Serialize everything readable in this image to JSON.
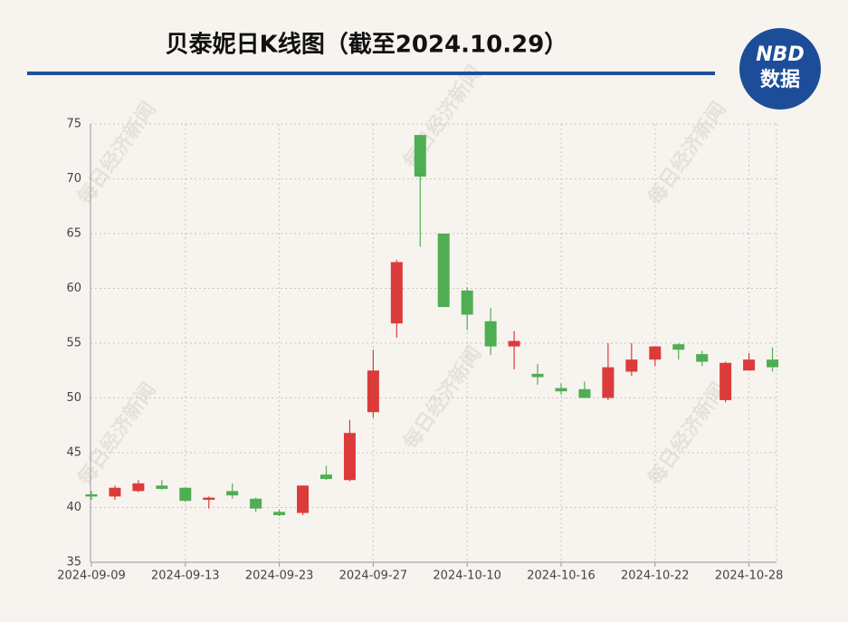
{
  "chart_data": {
    "type": "candlestick",
    "title": "贝泰妮日K线图（截至2024.10.29）",
    "logo": {
      "top": "NBD",
      "bottom": "数据"
    },
    "watermark": "每日经济新闻",
    "categories": [
      "2024-09-09",
      null,
      null,
      null,
      "2024-09-13",
      null,
      null,
      null,
      "2024-09-23",
      null,
      null,
      null,
      "2024-09-27",
      null,
      null,
      null,
      "2024-10-10",
      null,
      null,
      null,
      "2024-10-16",
      null,
      null,
      null,
      "2024-10-22",
      null,
      null,
      null,
      "2024-10-28",
      null
    ],
    "open": [
      41.2,
      41.0,
      41.5,
      42.0,
      41.8,
      40.7,
      41.5,
      40.8,
      39.6,
      39.5,
      43.0,
      42.5,
      48.7,
      56.8,
      74.0,
      65.0,
      59.8,
      57.0,
      54.7,
      52.2,
      50.9,
      50.8,
      50.0,
      52.4,
      53.5,
      54.9,
      54.0,
      49.8,
      52.5,
      53.5
    ],
    "high": [
      41.5,
      42.0,
      42.5,
      42.5,
      41.8,
      41.0,
      42.2,
      40.9,
      39.8,
      42.0,
      43.8,
      48.0,
      54.4,
      62.6,
      74.0,
      65.0,
      60.1,
      58.2,
      56.1,
      53.1,
      51.3,
      51.5,
      55.0,
      55.0,
      54.7,
      55.0,
      54.3,
      53.3,
      54.1,
      54.6
    ],
    "low": [
      40.7,
      40.7,
      41.4,
      41.6,
      40.5,
      39.9,
      40.8,
      39.6,
      39.2,
      39.3,
      42.5,
      42.4,
      48.2,
      55.5,
      63.8,
      58.3,
      56.2,
      53.9,
      52.6,
      51.2,
      50.3,
      50.0,
      49.8,
      52.0,
      52.9,
      53.5,
      52.9,
      49.6,
      52.5,
      52.4
    ],
    "close": [
      41.0,
      41.8,
      42.2,
      41.7,
      40.6,
      40.9,
      41.1,
      39.9,
      39.3,
      42.0,
      42.6,
      46.8,
      52.5,
      62.4,
      70.2,
      58.3,
      57.6,
      54.7,
      55.2,
      51.9,
      50.6,
      50.0,
      52.8,
      53.5,
      54.7,
      54.4,
      53.3,
      53.2,
      53.5,
      52.8
    ],
    "up_color": "#dc3b3b",
    "down_color": "#4fae52",
    "ylim": [
      35,
      75
    ],
    "yticks": [
      35,
      40,
      45,
      50,
      55,
      60,
      65,
      70,
      75
    ],
    "grid": true
  }
}
